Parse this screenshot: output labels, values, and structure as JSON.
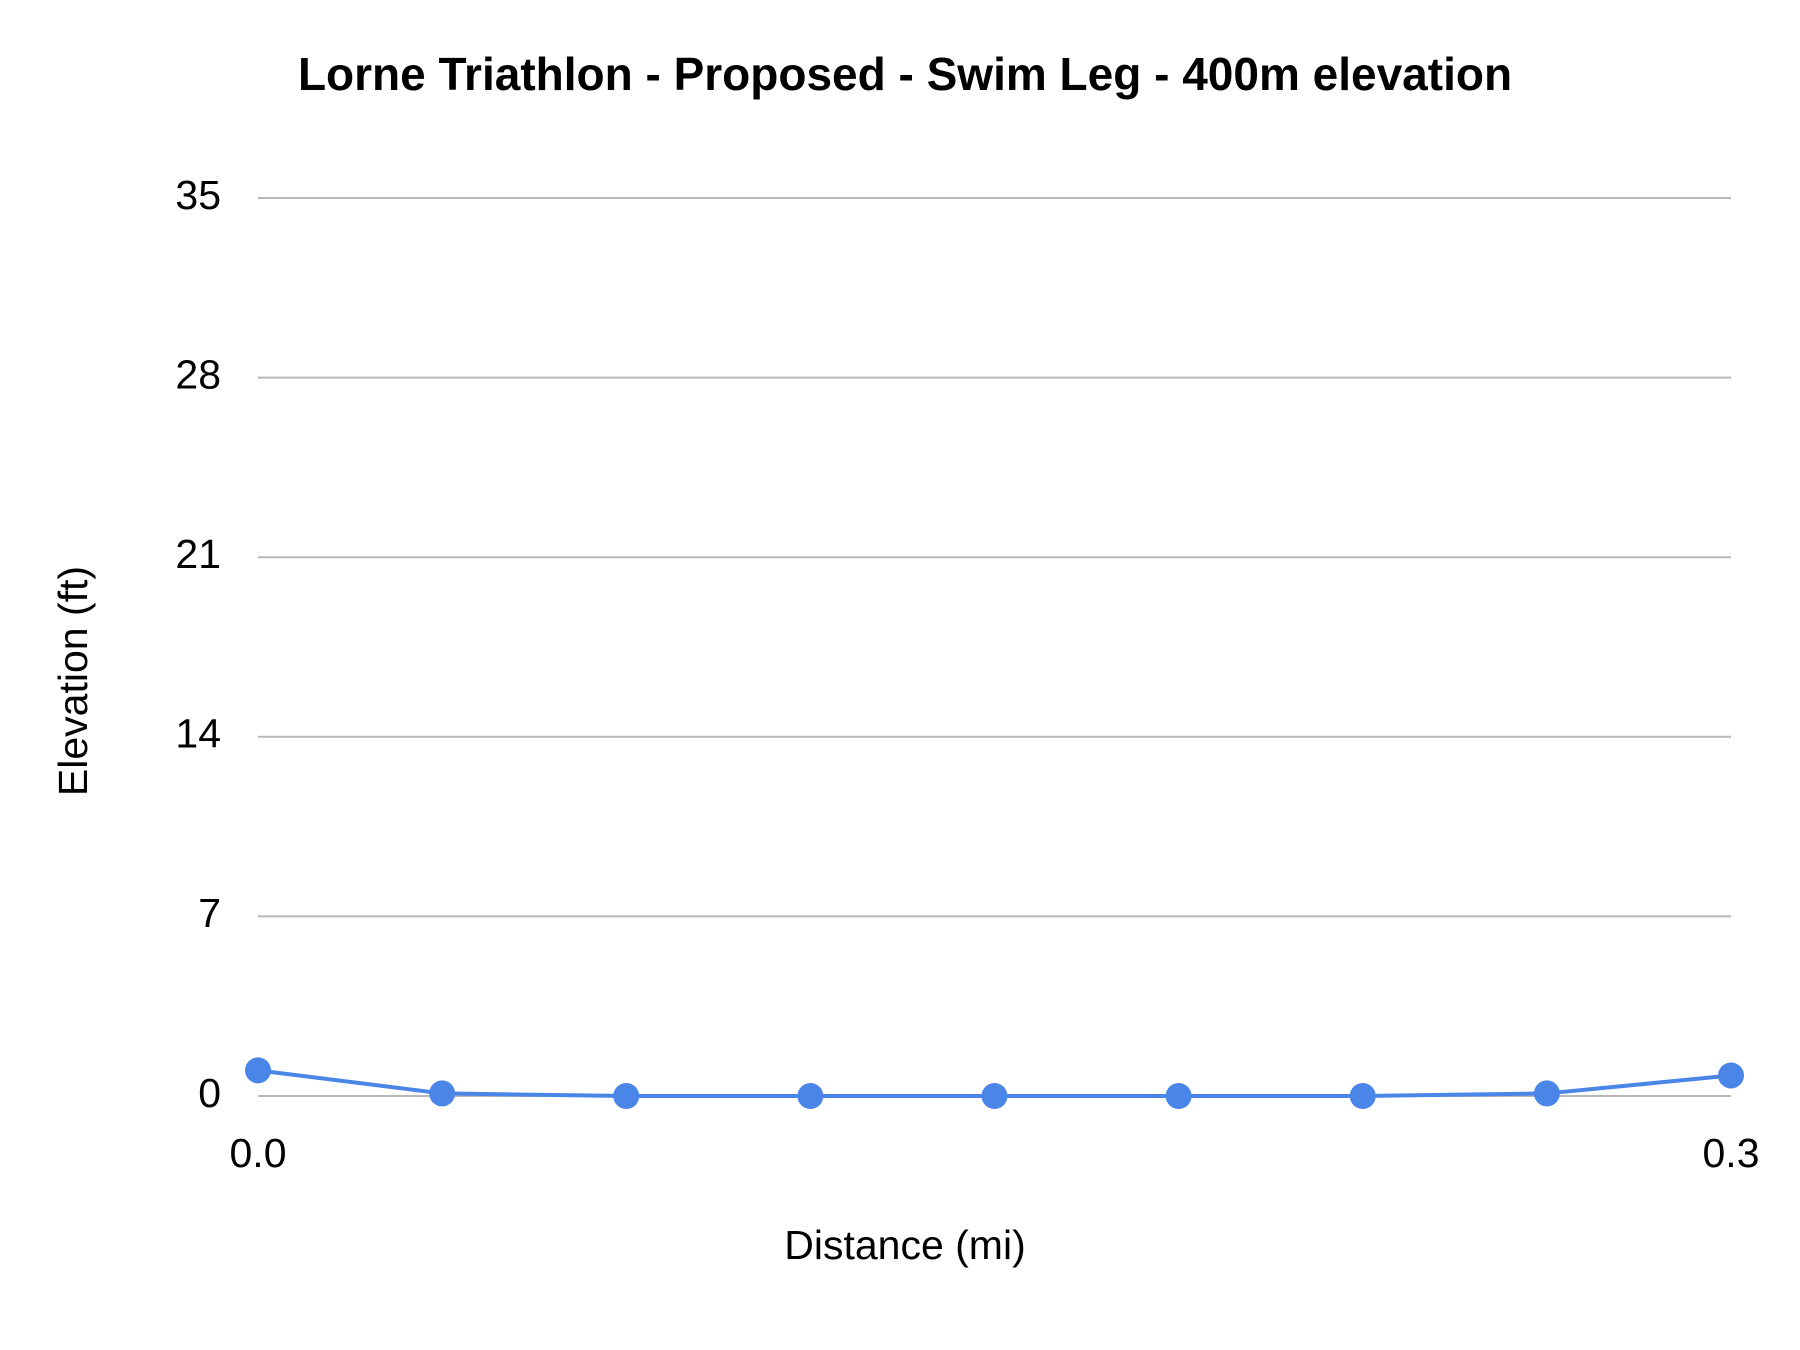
{
  "chart_data": {
    "type": "line",
    "title": "Lorne Triathlon - Proposed  - Swim Leg - 400m elevation",
    "x_label": "Distance (mi)",
    "y_label": "Elevation (ft)",
    "x": [
      0,
      0.0375,
      0.075,
      0.1125,
      0.15,
      0.1875,
      0.225,
      0.2625,
      0.3
    ],
    "series": [
      {
        "name": "Elevation (ft)",
        "color": "#4a86e8",
        "values": [
          1.0,
          0.1,
          0,
          0,
          0,
          0,
          0,
          0.1,
          0.8
        ]
      }
    ],
    "xlim": [
      0,
      0.3
    ],
    "xticks": [
      {
        "value": 0,
        "label": "0.0"
      },
      {
        "value": 0.3,
        "label": "0.3"
      }
    ],
    "ylim": [
      0,
      35
    ],
    "yticks": [
      0,
      7,
      14,
      21,
      28,
      35
    ],
    "grid": true,
    "grid_color": "#b7b7b7"
  }
}
